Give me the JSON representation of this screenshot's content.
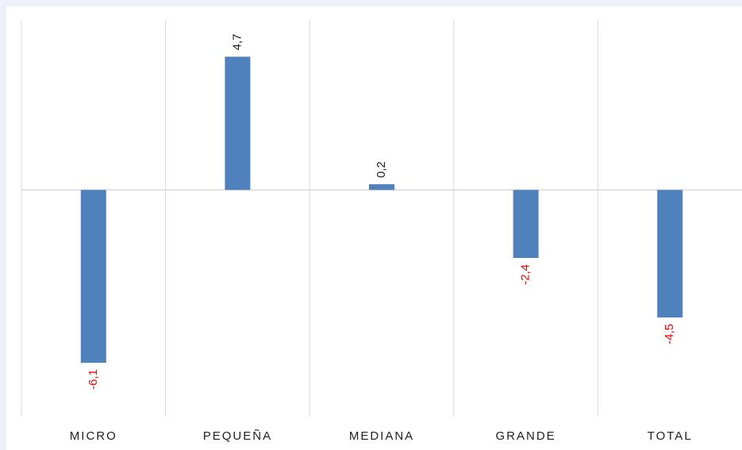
{
  "chart_data": {
    "type": "bar",
    "categories": [
      "MICRO",
      "PEQUEÑA",
      "MEDIANA",
      "GRANDE",
      "TOTAL"
    ],
    "values": [
      -6.1,
      4.7,
      0.2,
      -2.4,
      -4.5
    ],
    "value_labels": [
      "-6,1",
      "4,7",
      "0,2",
      "-2,4",
      "-4,5"
    ],
    "color": "#4f81bd",
    "positive_label_color": "#222222",
    "negative_label_color": "#ff0000",
    "ylim": [
      -8,
      6
    ]
  }
}
